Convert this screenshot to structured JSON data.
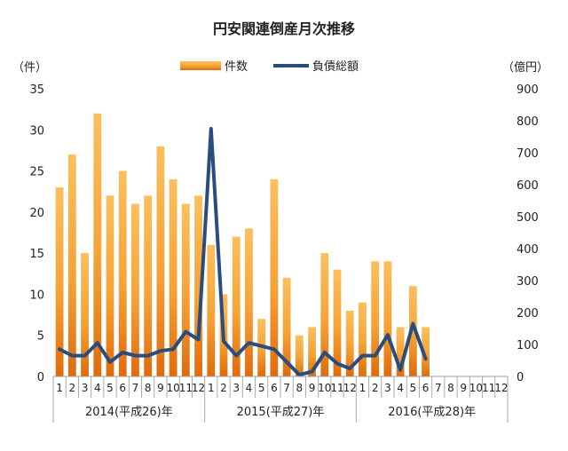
{
  "chart_data": {
    "type": "bar",
    "title": "円安関連倒産月次推移",
    "y_left_label": "（件）",
    "y_right_label": "（億円）",
    "ylim_left": [
      0,
      35
    ],
    "ylim_right": [
      0,
      900
    ],
    "left_ticks": [
      0,
      5,
      10,
      15,
      20,
      25,
      30,
      35
    ],
    "right_ticks": [
      0,
      100,
      200,
      300,
      400,
      500,
      600,
      700,
      800,
      900
    ],
    "legend": [
      "件数",
      "負債総額"
    ],
    "legend_position": "top",
    "colors": {
      "bar": "#f5a336",
      "bar_dark": "#e06b0c",
      "line": "#2b4c7e"
    },
    "year_groups": [
      {
        "label": "2014(平成26)年",
        "months": [
          "1",
          "2",
          "3",
          "4",
          "5",
          "6",
          "7",
          "8",
          "9",
          "10",
          "11",
          "12"
        ]
      },
      {
        "label": "2015(平成27)年",
        "months": [
          "1",
          "2",
          "3",
          "4",
          "5",
          "6",
          "7",
          "8",
          "9",
          "10",
          "11",
          "12"
        ]
      },
      {
        "label": "2016(平成28)年",
        "months": [
          "1",
          "2",
          "3",
          "4",
          "5",
          "6",
          "7",
          "8",
          "9",
          "10",
          "11",
          "12"
        ]
      }
    ],
    "series": [
      {
        "name": "件数",
        "axis": "left",
        "kind": "bar",
        "values": [
          23,
          27,
          15,
          32,
          22,
          25,
          21,
          22,
          28,
          24,
          21,
          22,
          16,
          10,
          17,
          18,
          7,
          24,
          12,
          5,
          6,
          15,
          13,
          8,
          9,
          14,
          14,
          6,
          11,
          6
        ]
      },
      {
        "name": "負債総額",
        "axis": "right",
        "kind": "line",
        "values": [
          85,
          65,
          65,
          105,
          45,
          75,
          65,
          65,
          80,
          85,
          140,
          115,
          775,
          110,
          65,
          105,
          95,
          85,
          45,
          5,
          15,
          75,
          40,
          25,
          65,
          65,
          130,
          20,
          165,
          55
        ]
      }
    ]
  }
}
